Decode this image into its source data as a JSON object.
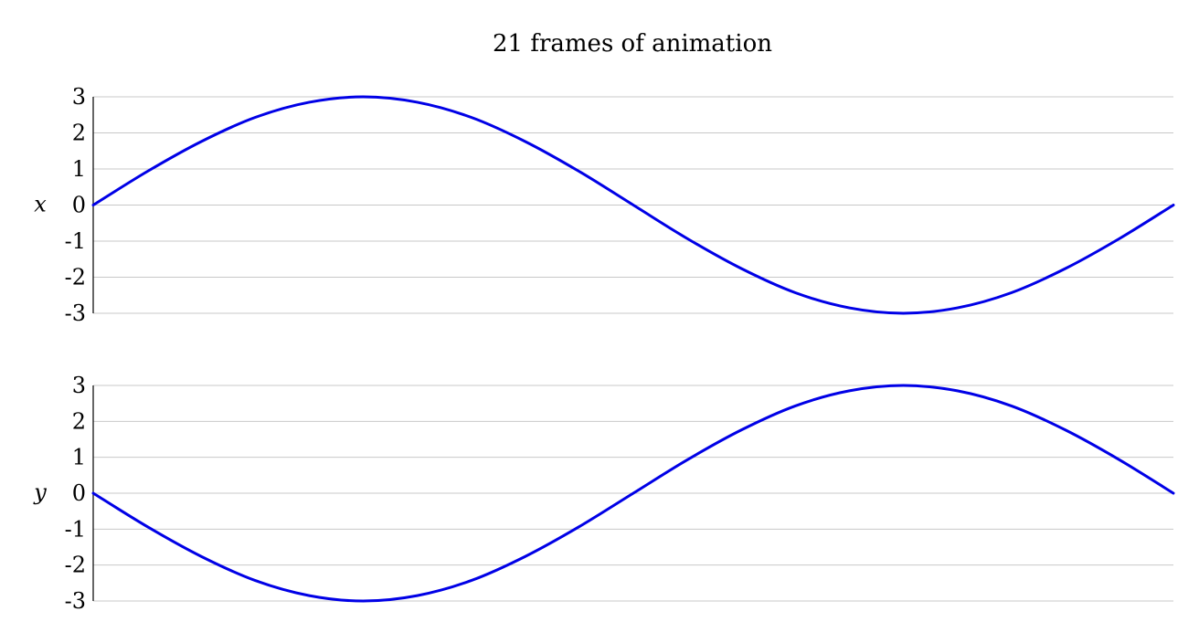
{
  "title": "21 frames of animation",
  "colors": {
    "series": "#0000e6",
    "grid": "#c8c8c8"
  },
  "chart_data": [
    {
      "type": "line",
      "ylabel": "x",
      "title": "",
      "xlim": [
        0,
        20
      ],
      "ylim": [
        -3,
        3
      ],
      "yticks": [
        "-3",
        "-2",
        "-1",
        "0",
        "1",
        "2",
        "3"
      ],
      "grid": true,
      "x": [
        0,
        1,
        2,
        3,
        4,
        5,
        6,
        7,
        8,
        9,
        10,
        11,
        12,
        13,
        14,
        15,
        16,
        17,
        18,
        19,
        20
      ],
      "series": [
        {
          "values": [
            0,
            0.93,
            1.76,
            2.43,
            2.85,
            3.0,
            2.85,
            2.43,
            1.76,
            0.93,
            0,
            -0.93,
            -1.76,
            -2.43,
            -2.85,
            -3.0,
            -2.85,
            -2.43,
            -1.76,
            -0.93,
            0
          ]
        }
      ]
    },
    {
      "type": "line",
      "ylabel": "y",
      "title": "",
      "xlim": [
        0,
        20
      ],
      "ylim": [
        -3,
        3
      ],
      "yticks": [
        "-3",
        "-2",
        "-1",
        "0",
        "1",
        "2",
        "3"
      ],
      "grid": true,
      "x": [
        0,
        1,
        2,
        3,
        4,
        5,
        6,
        7,
        8,
        9,
        10,
        11,
        12,
        13,
        14,
        15,
        16,
        17,
        18,
        19,
        20
      ],
      "series": [
        {
          "values": [
            0,
            -0.93,
            -1.76,
            -2.43,
            -2.85,
            -3.0,
            -2.85,
            -2.43,
            -1.76,
            -0.93,
            0,
            0.93,
            1.76,
            2.43,
            2.85,
            3.0,
            2.85,
            2.43,
            1.76,
            0.93,
            0
          ]
        }
      ]
    }
  ]
}
